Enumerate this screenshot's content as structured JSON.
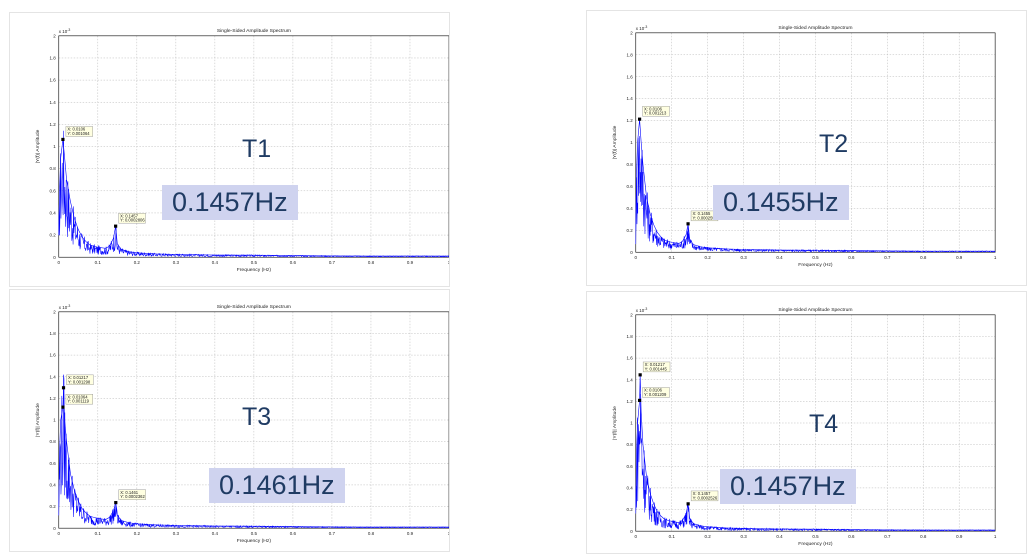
{
  "chart_data": [
    {
      "type": "line",
      "title": "Single-Sided Amplitude Spectrum",
      "xlabel": "Frequency (Hz)",
      "ylabel": "|Y(f)| Amplitude",
      "exponent_label": "x 10",
      "exponent_power": "-3",
      "xlim": [
        0,
        1
      ],
      "ylim": [
        0,
        0.002
      ],
      "x_ticks": [
        "0",
        "0.1",
        "0.2",
        "0.3",
        "0.4",
        "0.5",
        "0.6",
        "0.7",
        "0.8",
        "0.9",
        "1"
      ],
      "y_ticks": [
        "0",
        "0.2",
        "0.4",
        "0.6",
        "0.8",
        "1",
        "1.2",
        "1.4",
        "1.6",
        "1.8",
        "2"
      ],
      "grid": true,
      "series_color": "#0000ff",
      "series": [
        {
          "x": [
            0,
            0.002,
            0.005,
            0.0106,
            0.015,
            0.02,
            0.03,
            0.04,
            0.05,
            0.06,
            0.07,
            0.08,
            0.09,
            0.1,
            0.12,
            0.13,
            0.14,
            0.1457,
            0.15,
            0.16,
            0.18,
            0.2,
            0.25,
            0.3,
            0.4,
            0.5,
            0.6,
            0.7,
            0.8,
            0.9,
            1.0
          ],
          "y": [
            0.0002,
            0.0006,
            0.0009,
            0.001064,
            0.0009,
            0.0007,
            0.0005,
            0.00035,
            0.00025,
            0.00018,
            0.00014,
            0.00011,
            0.0001,
            9e-05,
            8e-05,
            0.0001,
            0.00017,
            0.0002806,
            0.00012,
            7e-05,
            5e-05,
            4e-05,
            3e-05,
            2.5e-05,
            2e-05,
            1.8e-05,
            1.5e-05,
            1.2e-05,
            1e-05,
            1e-05,
            1e-05
          ]
        }
      ],
      "datatips": [
        {
          "x": 0.0106,
          "y": 0.001064,
          "line1": "X: 0.0106",
          "line2": "Y: 0.001064"
        },
        {
          "x": 0.1457,
          "y": 0.0002806,
          "line1": "X: 0.1457",
          "line2": "Y: 0.0002806"
        }
      ],
      "trace_label": "T1",
      "frequency_label": "0.1457Hz"
    },
    {
      "type": "line",
      "title": "Single-Sided Amplitude Spectrum",
      "xlabel": "Frequency (Hz)",
      "ylabel": "|Y(f)| Amplitude",
      "exponent_label": "x 10",
      "exponent_power": "-3",
      "xlim": [
        0,
        1
      ],
      "ylim": [
        0,
        0.002
      ],
      "x_ticks": [
        "0",
        "0.1",
        "0.2",
        "0.3",
        "0.4",
        "0.5",
        "0.6",
        "0.7",
        "0.8",
        "0.9",
        "1"
      ],
      "y_ticks": [
        "0",
        "0.2",
        "0.4",
        "0.6",
        "0.8",
        "1",
        "1.2",
        "1.4",
        "1.6",
        "1.8",
        "2"
      ],
      "grid": true,
      "series_color": "#0000ff",
      "series": [
        {
          "x": [
            0,
            0.002,
            0.005,
            0.0106,
            0.015,
            0.02,
            0.03,
            0.04,
            0.05,
            0.06,
            0.07,
            0.08,
            0.09,
            0.1,
            0.12,
            0.13,
            0.14,
            0.1455,
            0.15,
            0.16,
            0.18,
            0.2,
            0.25,
            0.3,
            0.4,
            0.5,
            0.6,
            0.7,
            0.8,
            0.9,
            1.0
          ],
          "y": [
            0.0002,
            0.0007,
            0.001,
            0.001213,
            0.001,
            0.0008,
            0.0005,
            0.00035,
            0.00025,
            0.00018,
            0.00014,
            0.00011,
            0.0001,
            9e-05,
            8e-05,
            0.0001,
            0.00016,
            0.0002591,
            0.00012,
            7e-05,
            5e-05,
            4e-05,
            3e-05,
            2.5e-05,
            2e-05,
            1.8e-05,
            1.5e-05,
            1.2e-05,
            1e-05,
            1e-05,
            1e-05
          ]
        }
      ],
      "datatips": [
        {
          "x": 0.0106,
          "y": 0.001213,
          "line1": "X: 0.0106",
          "line2": "Y: 0.001213"
        },
        {
          "x": 0.1455,
          "y": 0.0002591,
          "line1": "X: 0.1455",
          "line2": "Y: 0.0002591"
        }
      ],
      "trace_label": "T2",
      "frequency_label": "0.1455Hz"
    },
    {
      "type": "line",
      "title": "Single-Sided Amplitude Spectrum",
      "xlabel": "Frequency (Hz)",
      "ylabel": "|Y(f)| Amplitude",
      "exponent_label": "x 10",
      "exponent_power": "-3",
      "xlim": [
        0,
        1
      ],
      "ylim": [
        0,
        0.002
      ],
      "x_ticks": [
        "0",
        "0.1",
        "0.2",
        "0.3",
        "0.4",
        "0.5",
        "0.6",
        "0.7",
        "0.8",
        "0.9",
        "1"
      ],
      "y_ticks": [
        "0",
        "0.2",
        "0.4",
        "0.6",
        "0.8",
        "1",
        "1.2",
        "1.4",
        "1.6",
        "1.8",
        "2"
      ],
      "grid": true,
      "series_color": "#0000ff",
      "series": [
        {
          "x": [
            0,
            0.002,
            0.005,
            0.01064,
            0.01217,
            0.015,
            0.02,
            0.03,
            0.04,
            0.05,
            0.06,
            0.07,
            0.08,
            0.09,
            0.1,
            0.12,
            0.13,
            0.14,
            0.1461,
            0.15,
            0.16,
            0.18,
            0.2,
            0.25,
            0.3,
            0.4,
            0.5,
            0.6,
            0.7,
            0.8,
            0.9,
            1.0
          ],
          "y": [
            0.0002,
            0.0007,
            0.001,
            0.001119,
            0.001298,
            0.001,
            0.0008,
            0.0005,
            0.00035,
            0.00025,
            0.00018,
            0.00014,
            0.00011,
            0.0001,
            9e-05,
            8e-05,
            0.0001,
            0.00016,
            0.0002362,
            0.00012,
            7e-05,
            5e-05,
            4e-05,
            3e-05,
            2.5e-05,
            2e-05,
            1.8e-05,
            1.5e-05,
            1.2e-05,
            1e-05,
            1e-05,
            1e-05
          ]
        }
      ],
      "datatips": [
        {
          "x": 0.01217,
          "y": 0.001298,
          "line1": "X: 0.01217",
          "line2": "Y: 0.001298"
        },
        {
          "x": 0.01064,
          "y": 0.001119,
          "line1": "X: 0.01064",
          "line2": "Y: 0.001119"
        },
        {
          "x": 0.1461,
          "y": 0.0002362,
          "line1": "X: 0.1461",
          "line2": "Y: 0.0002362"
        }
      ],
      "trace_label": "T3",
      "frequency_label": "0.1461Hz"
    },
    {
      "type": "line",
      "title": "Single-Sided Amplitude Spectrum",
      "xlabel": "Frequency (Hz)",
      "ylabel": "|Y(f)| Amplitude",
      "exponent_label": "x 10",
      "exponent_power": "-3",
      "xlim": [
        0,
        1
      ],
      "ylim": [
        0,
        0.002
      ],
      "x_ticks": [
        "0",
        "0.1",
        "0.2",
        "0.3",
        "0.4",
        "0.5",
        "0.6",
        "0.7",
        "0.8",
        "0.9",
        "1"
      ],
      "y_ticks": [
        "0",
        "0.2",
        "0.4",
        "0.6",
        "0.8",
        "1",
        "1.2",
        "1.4",
        "1.6",
        "1.8",
        "2"
      ],
      "grid": true,
      "series_color": "#0000ff",
      "series": [
        {
          "x": [
            0,
            0.002,
            0.005,
            0.0106,
            0.01217,
            0.015,
            0.02,
            0.03,
            0.04,
            0.05,
            0.06,
            0.07,
            0.08,
            0.09,
            0.1,
            0.12,
            0.13,
            0.14,
            0.1457,
            0.15,
            0.16,
            0.18,
            0.2,
            0.25,
            0.3,
            0.4,
            0.5,
            0.6,
            0.7,
            0.8,
            0.9,
            1.0
          ],
          "y": [
            0.0002,
            0.0007,
            0.001,
            0.001209,
            0.001445,
            0.0011,
            0.0008,
            0.0005,
            0.00035,
            0.00025,
            0.00018,
            0.00014,
            0.00011,
            0.0001,
            9e-05,
            8e-05,
            0.0001,
            0.00016,
            0.0002526,
            0.00012,
            7e-05,
            5e-05,
            4e-05,
            3e-05,
            2.5e-05,
            2e-05,
            1.8e-05,
            1.5e-05,
            1.2e-05,
            1e-05,
            1e-05,
            1e-05
          ]
        }
      ],
      "datatips": [
        {
          "x": 0.01217,
          "y": 0.001445,
          "line1": "X: 0.01217",
          "line2": "Y: 0.001445"
        },
        {
          "x": 0.0106,
          "y": 0.001209,
          "line1": "X: 0.0106",
          "line2": "Y: 0.001209"
        },
        {
          "x": 0.1457,
          "y": 0.0002526,
          "line1": "X: 0.1457",
          "line2": "Y: 0.0002526"
        }
      ],
      "trace_label": "T4",
      "frequency_label": "0.1457Hz"
    }
  ]
}
